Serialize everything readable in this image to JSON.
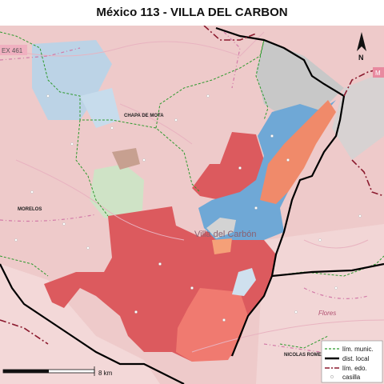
{
  "title": "México 113 - VILLA DEL CARBON",
  "places": {
    "chapa_de_mota": "CHAPA DE MOTA",
    "morelos": "MORELOS",
    "villa_del_carbon": "Villa del Carbón",
    "nicolas_romero": "NICOLAS ROMERO",
    "flores": "Flores",
    "hwy_left": "EX 461",
    "hwy_right": "M"
  },
  "north_arrow": {
    "label": "N"
  },
  "scale": {
    "label": "8 km"
  },
  "legend": [
    {
      "label": "lím. munic.",
      "style": "dashed",
      "color": "#2e9a2e"
    },
    {
      "label": "dist. local",
      "style": "solid",
      "color": "#000000"
    },
    {
      "label": "lím. edo.",
      "style": "dashdot",
      "color": "#8b1a2e"
    },
    {
      "label": "casilla",
      "style": "point",
      "color": "#cccccc"
    }
  ],
  "colors": {
    "background": "#eecaca",
    "red_main": "#dc5a5e",
    "blue": "#6fa8d6",
    "orange": "#f08a6a",
    "green_park": "#cfe3c6",
    "gray_area": "#c4c4c4",
    "light_blue": "#b8d2e6"
  }
}
